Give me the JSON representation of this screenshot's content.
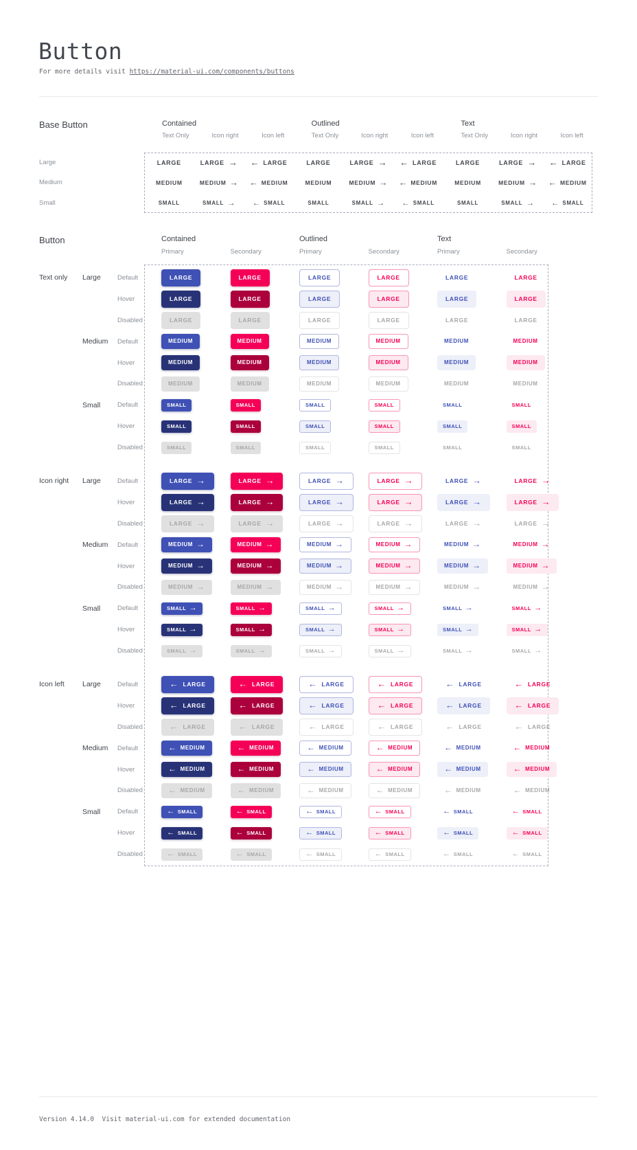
{
  "page": {
    "title": "Button",
    "subtitle_prefix": "For more details visit ",
    "subtitle_link": "https://material-ui.com/components/buttons",
    "footer": "Version 4.14.0  Visit material-ui.com for extended documentation"
  },
  "base_button": {
    "section_label": "Base Button",
    "group_headers": [
      "Contained",
      "Outlined",
      "Text"
    ],
    "sub_headers": [
      "Text Only",
      "Icon right",
      "Icon left"
    ],
    "sizes": [
      {
        "label": "Large",
        "text": "LARGE",
        "class": "large"
      },
      {
        "label": "Medium",
        "text": "MEDIUM",
        "class": "medium"
      },
      {
        "label": "Small",
        "text": "SMALL",
        "class": "small"
      }
    ]
  },
  "button": {
    "section_label": "Button",
    "group_headers": [
      "Contained",
      "Outlined",
      "Text"
    ],
    "columns": [
      {
        "group": "Contained",
        "label": "Primary",
        "variant": "contained-primary"
      },
      {
        "group": "Contained",
        "label": "Secondary",
        "variant": "contained-secondary"
      },
      {
        "group": "Outlined",
        "label": "Primary",
        "variant": "outlined-primary"
      },
      {
        "group": "Outlined",
        "label": "Secondary",
        "variant": "outlined-secondary"
      },
      {
        "group": "Text",
        "label": "Primary",
        "variant": "text-primary"
      },
      {
        "group": "Text",
        "label": "Secondary",
        "variant": "text-secondary"
      }
    ],
    "row_groups": [
      {
        "label": "Text only",
        "icon": "none"
      },
      {
        "label": "Icon right",
        "icon": "right"
      },
      {
        "label": "Icon left",
        "icon": "left"
      }
    ],
    "sizes": [
      {
        "label": "Large",
        "text": "LARGE",
        "class": "large"
      },
      {
        "label": "Medium",
        "text": "MEDIUM",
        "class": "medium"
      },
      {
        "label": "Small",
        "text": "SMALL",
        "class": "small"
      }
    ],
    "states": [
      {
        "label": "Default",
        "class": "default"
      },
      {
        "label": "Hover",
        "class": "hover"
      },
      {
        "label": "Disabled",
        "class": "disabled"
      }
    ]
  },
  "icons": {
    "right": "→",
    "left": "←"
  },
  "colors": {
    "primary": "#3f51b5",
    "primary_dark": "#283377",
    "secondary": "#f50057",
    "secondary_dark": "#ab003c",
    "primary_hover_bg": "#edeff9",
    "secondary_hover_bg": "#fde9f0",
    "disabled_bg": "#e0e0e0",
    "disabled_text": "#a7a7a7",
    "outline_primary_border": "#b0b7e0",
    "outline_secondary_border": "#f795b7",
    "outline_disabled_border": "#e4e4e4"
  }
}
